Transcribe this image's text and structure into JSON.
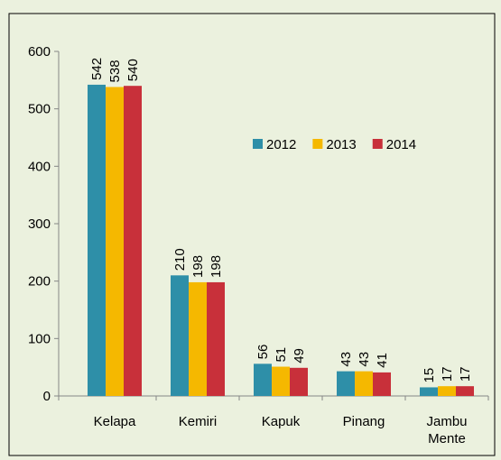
{
  "chart_data": {
    "type": "bar",
    "categories": [
      "Kelapa",
      "Kemiri",
      "Kapuk",
      "Pinang",
      "Jambu Mente"
    ],
    "series": [
      {
        "name": "2012",
        "color": "#2e8fa8",
        "values": [
          542,
          210,
          56,
          43,
          15
        ]
      },
      {
        "name": "2013",
        "color": "#f5b800",
        "values": [
          538,
          198,
          51,
          43,
          17
        ]
      },
      {
        "name": "2014",
        "color": "#c8303a",
        "values": [
          540,
          198,
          49,
          41,
          17
        ]
      }
    ],
    "ylim": [
      0,
      600
    ],
    "yticks": [
      0,
      100,
      200,
      300,
      400,
      500,
      600
    ],
    "legend": "upper right",
    "grid": false
  }
}
